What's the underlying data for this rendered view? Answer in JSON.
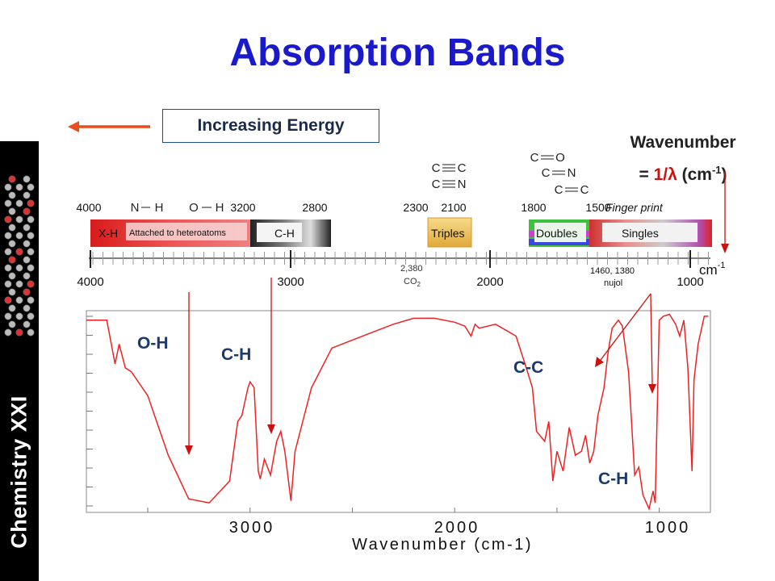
{
  "title": "Absorption Bands",
  "sidebar_label": "Chemistry XXI",
  "energy_label": "Increasing Energy",
  "wavenumber_label": {
    "line1": "Wavenumber",
    "prefix": "= ",
    "formula": "1/λ",
    "unit_open": " (cm",
    "unit_sup": "-1",
    "unit_close": ")"
  },
  "colors": {
    "title": "#1a1acc",
    "spectrum": "#ee2222",
    "arrow": "#cc1111",
    "sidebar": "#000000"
  },
  "band_chart": {
    "top_ticks": [
      "4000",
      "3200",
      "2800",
      "2300",
      "2100",
      "1800",
      "1500"
    ],
    "bottom_ticks": [
      "4000",
      "3000",
      "2000",
      "1000"
    ],
    "unit": "cm",
    "unit_sup": "-1",
    "bonds": [
      "N",
      "H",
      "O",
      "H"
    ],
    "triple_bonds": [
      "C",
      "C",
      "C",
      "N"
    ],
    "double_bonds": [
      "C",
      "O",
      "C",
      "N",
      "C",
      "C"
    ],
    "regions": [
      {
        "label": "X-H",
        "from": 4000,
        "to": 3200
      },
      {
        "label": "Attached to heteroatoms",
        "from": 3900,
        "to": 3200
      },
      {
        "label": "C-H",
        "from": 3200,
        "to": 2800
      },
      {
        "label": "Triples",
        "from": 2300,
        "to": 2100
      },
      {
        "label": "Doubles",
        "from": 1800,
        "to": 1500
      },
      {
        "label": "Singles",
        "from": 1500,
        "to": 1000
      }
    ],
    "fingerprint": "Finger print",
    "co2": {
      "value": "2,380",
      "formula": "CO",
      "sub": "2"
    },
    "nujol": {
      "value": "1460, 1380",
      "name": "nujol"
    }
  },
  "spectrum": {
    "xlabel": "Wavenumber (cm-1)",
    "ticks": [
      "3000",
      "2000",
      "1000"
    ],
    "annotations": [
      "O-H",
      "C-H",
      "C-C",
      "C-H"
    ]
  },
  "chart_data": {
    "type": "line",
    "xlabel": "Wavenumber (cm-1)",
    "x_reversed": true,
    "xlim": [
      3800,
      750
    ],
    "ylim": [
      0,
      100
    ],
    "y_meaning": "transmittance",
    "series": [
      {
        "x": [
          3800,
          3700,
          3660,
          3640,
          3610,
          3580,
          3500,
          3400,
          3300,
          3200,
          3100,
          3060,
          3040,
          3010,
          3000,
          2980,
          2960,
          2950,
          2930,
          2900,
          2870,
          2850,
          2830,
          2800,
          2780,
          2700,
          2600,
          2400,
          2300,
          2200,
          2100,
          2000,
          1950,
          1920,
          1900,
          1880,
          1800,
          1700,
          1650,
          1620,
          1600,
          1560,
          1540,
          1520,
          1500,
          1470,
          1440,
          1410,
          1380,
          1360,
          1340,
          1320,
          1300,
          1270,
          1250,
          1230,
          1200,
          1180,
          1150,
          1120,
          1100,
          1080,
          1050,
          1030,
          1020,
          1000,
          980,
          950,
          920,
          900,
          880,
          860,
          840,
          830,
          810,
          780,
          760
        ],
        "y": [
          96,
          96,
          74,
          84,
          72,
          70,
          58,
          28,
          6,
          4,
          15,
          45,
          48,
          62,
          65,
          62,
          20,
          16,
          26,
          18,
          35,
          40,
          30,
          5,
          30,
          62,
          82,
          90,
          94,
          97,
          97,
          95,
          93,
          88,
          94,
          92,
          94,
          88,
          72,
          62,
          40,
          35,
          45,
          15,
          30,
          20,
          42,
          28,
          30,
          38,
          24,
          30,
          48,
          62,
          80,
          92,
          96,
          93,
          70,
          18,
          22,
          8,
          1,
          10,
          4,
          96,
          98,
          99,
          94,
          88,
          96,
          72,
          20,
          66,
          84,
          98,
          98
        ]
      }
    ],
    "annotations": [
      "O-H",
      "C-H",
      "C-C",
      "C-H"
    ]
  }
}
